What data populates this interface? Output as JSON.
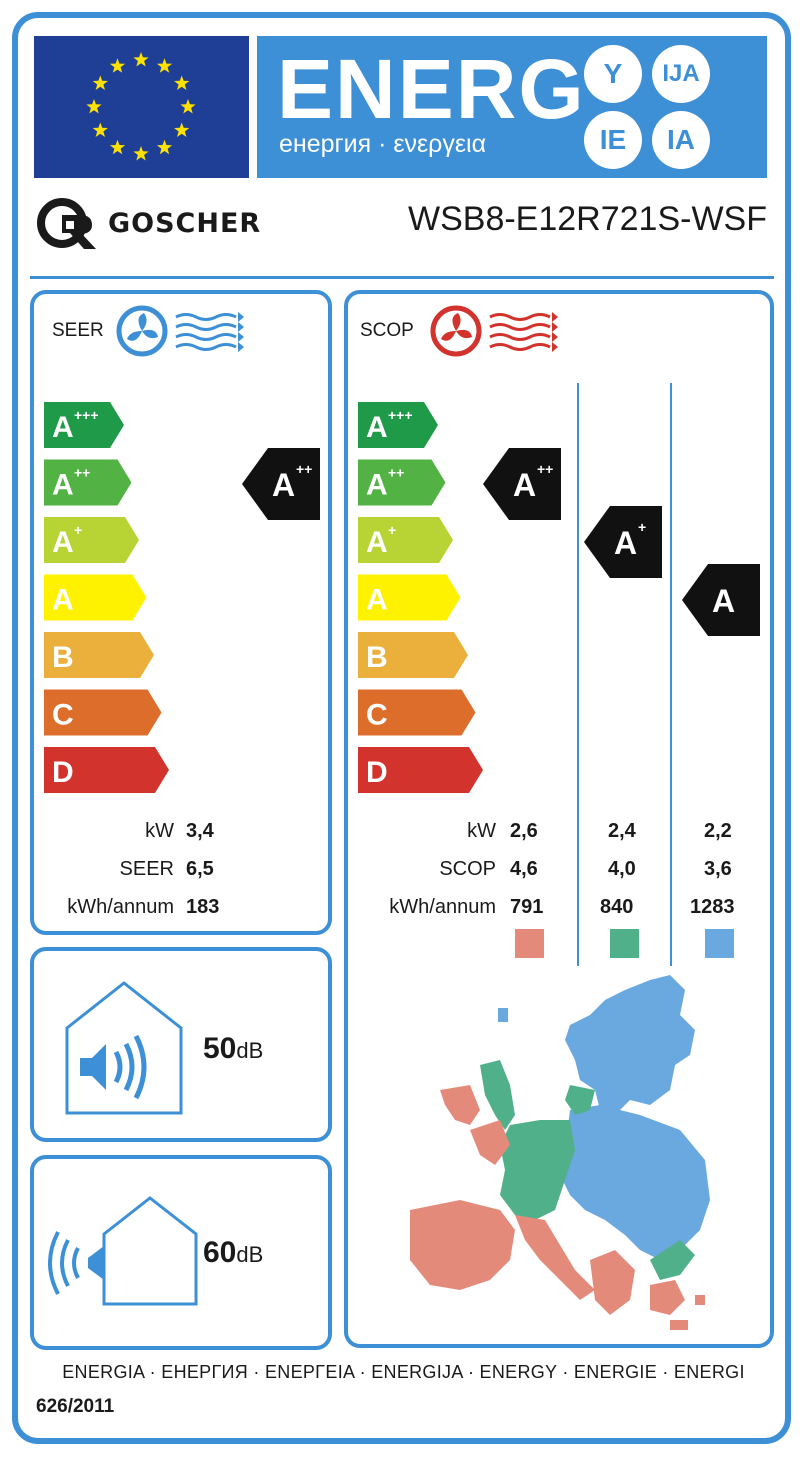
{
  "header": {
    "energ_word": "ENERG",
    "energ_sub": "енергия · ενεργεια",
    "suffixes": [
      "Y",
      "IJA",
      "IE",
      "IA"
    ]
  },
  "supplier": {
    "brand": "GOSCHER",
    "model": "WSB8-E12R721S-WSF"
  },
  "scale_classes": [
    {
      "letter": "A",
      "sup": "+++",
      "color": "#1f9a48"
    },
    {
      "letter": "A",
      "sup": "++",
      "color": "#52b244"
    },
    {
      "letter": "A",
      "sup": "+",
      "color": "#b7d334"
    },
    {
      "letter": "A",
      "sup": "",
      "color": "#fff200"
    },
    {
      "letter": "B",
      "sup": "",
      "color": "#ebb03b"
    },
    {
      "letter": "C",
      "sup": "",
      "color": "#dd6d2b"
    },
    {
      "letter": "D",
      "sup": "",
      "color": "#d2332d"
    }
  ],
  "cooling": {
    "label": "SEER",
    "class_letter": "A",
    "class_sup": "++",
    "rows": [
      {
        "key": "kW",
        "value": "3,4"
      },
      {
        "key": "SEER",
        "value": "6,5"
      },
      {
        "key": "kWh/annum",
        "value": "183"
      }
    ]
  },
  "heating": {
    "label": "SCOP",
    "row_keys": [
      "kW",
      "SCOP",
      "kWh/annum"
    ],
    "climates": [
      {
        "class_letter": "A",
        "class_sup": "++",
        "values": [
          "2,6",
          "4,6",
          "791"
        ],
        "color": "#e38a7a"
      },
      {
        "class_letter": "A",
        "class_sup": "+",
        "values": [
          "2,4",
          "4,0",
          "840"
        ],
        "color": "#4fb08a"
      },
      {
        "class_letter": "A",
        "class_sup": "",
        "values": [
          "2,2",
          "3,6",
          "1283"
        ],
        "color": "#6aa8e0"
      }
    ]
  },
  "noise": {
    "indoor": {
      "value": "50",
      "unit": "dB"
    },
    "outdoor": {
      "value": "60",
      "unit": "dB"
    }
  },
  "footer": {
    "languages": "ENERGIA · ЕНЕРГИЯ · ΕΝΕΡΓΕΙΑ · ENERGIJA · ENERGY · ENERGIE · ENERGI",
    "regulation": "626/2011"
  },
  "colors": {
    "accent": "#3d8fd6",
    "eu_blue": "#1f3f96",
    "eu_star": "#ffe100",
    "cool_icon": "#3d8fd6",
    "heat_icon": "#d2332d"
  }
}
